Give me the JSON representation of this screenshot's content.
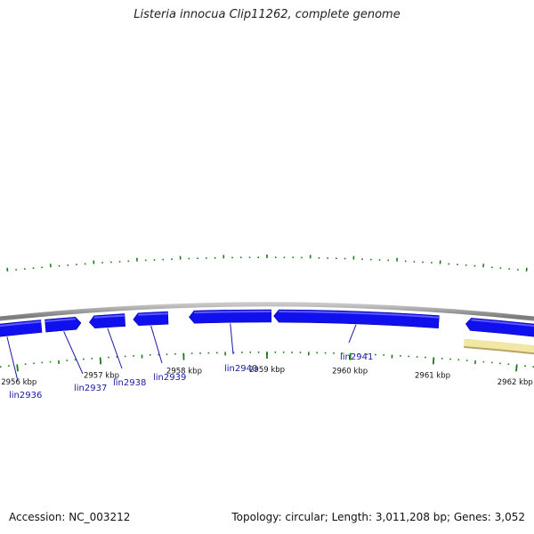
{
  "header": {
    "title": "Listeria innocua Clip11262, complete genome"
  },
  "footer": {
    "accession": "Accession: NC_003212",
    "summary": "Topology: circular; Length: 3,011,208 bp; Genes: 3,052"
  },
  "colors": {
    "backbone": "#8a8a8a",
    "gene_fill": "#1010ee",
    "gene_highlight": "#5a5aff",
    "other_feature": "#f3e7a6",
    "other_feature_edge": "#b5a666",
    "tick": "#1e7a1e",
    "leader": "#1a1aa6"
  },
  "scale": {
    "ticks": [
      {
        "kb": 2956,
        "label": "2956 kbp"
      },
      {
        "kb": 2957,
        "label": "2957 kbp"
      },
      {
        "kb": 2958,
        "label": "2958 kbp"
      },
      {
        "kb": 2959,
        "label": "2959 kbp"
      },
      {
        "kb": 2960,
        "label": "2960 kbp"
      },
      {
        "kb": 2961,
        "label": "2961 kbp"
      },
      {
        "kb": 2962,
        "label": "2962 kbp"
      }
    ]
  },
  "genes": [
    {
      "name": "lin2936",
      "start_kb": 2955.5,
      "end_kb": 2956.33,
      "strand": "-"
    },
    {
      "name": "lin2937",
      "start_kb": 2956.38,
      "end_kb": 2956.8,
      "strand": "+"
    },
    {
      "name": "lin2938",
      "start_kb": 2956.9,
      "end_kb": 2957.32,
      "strand": "-"
    },
    {
      "name": "lin2939",
      "start_kb": 2957.42,
      "end_kb": 2957.83,
      "strand": "-"
    },
    {
      "name": "lin2940",
      "start_kb": 2958.08,
      "end_kb": 2959.05,
      "strand": "-"
    },
    {
      "name": "lin2941",
      "start_kb": 2959.08,
      "end_kb": 2961.03,
      "strand": "-"
    },
    {
      "name": "",
      "start_kb": 2961.35,
      "end_kb": 2962.6,
      "strand": "-"
    }
  ],
  "other_features": [
    {
      "start_kb": 2961.35,
      "end_kb": 2962.6
    }
  ]
}
